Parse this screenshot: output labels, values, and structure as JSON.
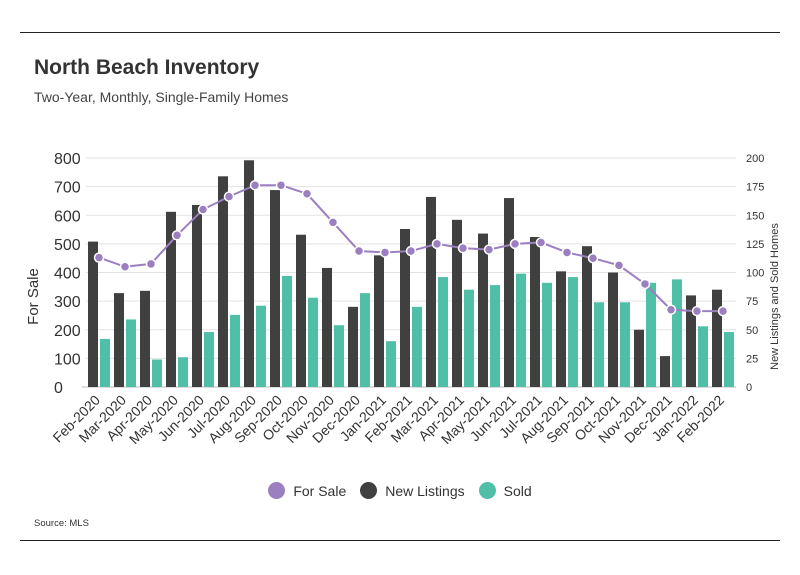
{
  "title": "North Beach Inventory",
  "subtitle": "Two-Year, Monthly, Single-Family Homes",
  "source": "Source:  MLS",
  "chart_data": {
    "type": "bar",
    "categories": [
      "Feb-2020",
      "Mar-2020",
      "Apr-2020",
      "May-2020",
      "Jun-2020",
      "Jul-2020",
      "Aug-2020",
      "Sep-2020",
      "Oct-2020",
      "Nov-2020",
      "Dec-2020",
      "Jan-2021",
      "Feb-2021",
      "Mar-2021",
      "Apr-2021",
      "May-2021",
      "Jun-2021",
      "Jul-2021",
      "Aug-2021",
      "Sep-2021",
      "Oct-2021",
      "Nov-2021",
      "Dec-2021",
      "Jan-2022",
      "Feb-2022"
    ],
    "y_left": {
      "label": "For Sale",
      "ylim": [
        0,
        800
      ],
      "ticks": [
        0,
        100,
        200,
        300,
        400,
        500,
        600,
        700,
        800
      ]
    },
    "y_right": {
      "label": "New Listings and Sold Homes",
      "ylim": [
        0,
        200
      ],
      "ticks": [
        0,
        25,
        50,
        75,
        100,
        125,
        150,
        175,
        200
      ]
    },
    "series": [
      {
        "name": "For Sale",
        "kind": "line",
        "axis": "left",
        "color": "#9b7fc0",
        "values": [
          452,
          420,
          430,
          530,
          620,
          665,
          705,
          705,
          675,
          575,
          475,
          470,
          475,
          500,
          485,
          480,
          500,
          505,
          470,
          450,
          425,
          360,
          270,
          265,
          265
        ]
      },
      {
        "name": "New Listings",
        "kind": "bar",
        "axis": "right",
        "color": "#404040",
        "values": [
          127,
          82,
          84,
          153,
          159,
          184,
          198,
          172,
          133,
          104,
          70,
          115,
          138,
          166,
          146,
          134,
          165,
          131,
          101,
          123,
          100,
          50,
          27,
          80,
          85
        ]
      },
      {
        "name": "Sold",
        "kind": "bar",
        "axis": "right",
        "color": "#50bfa8",
        "values": [
          42,
          59,
          24,
          26,
          48,
          63,
          71,
          97,
          78,
          54,
          82,
          40,
          70,
          96,
          85,
          89,
          99,
          91,
          96,
          74,
          74,
          91,
          94,
          53,
          48
        ]
      }
    ],
    "grid": true,
    "legend_position": "bottom"
  }
}
